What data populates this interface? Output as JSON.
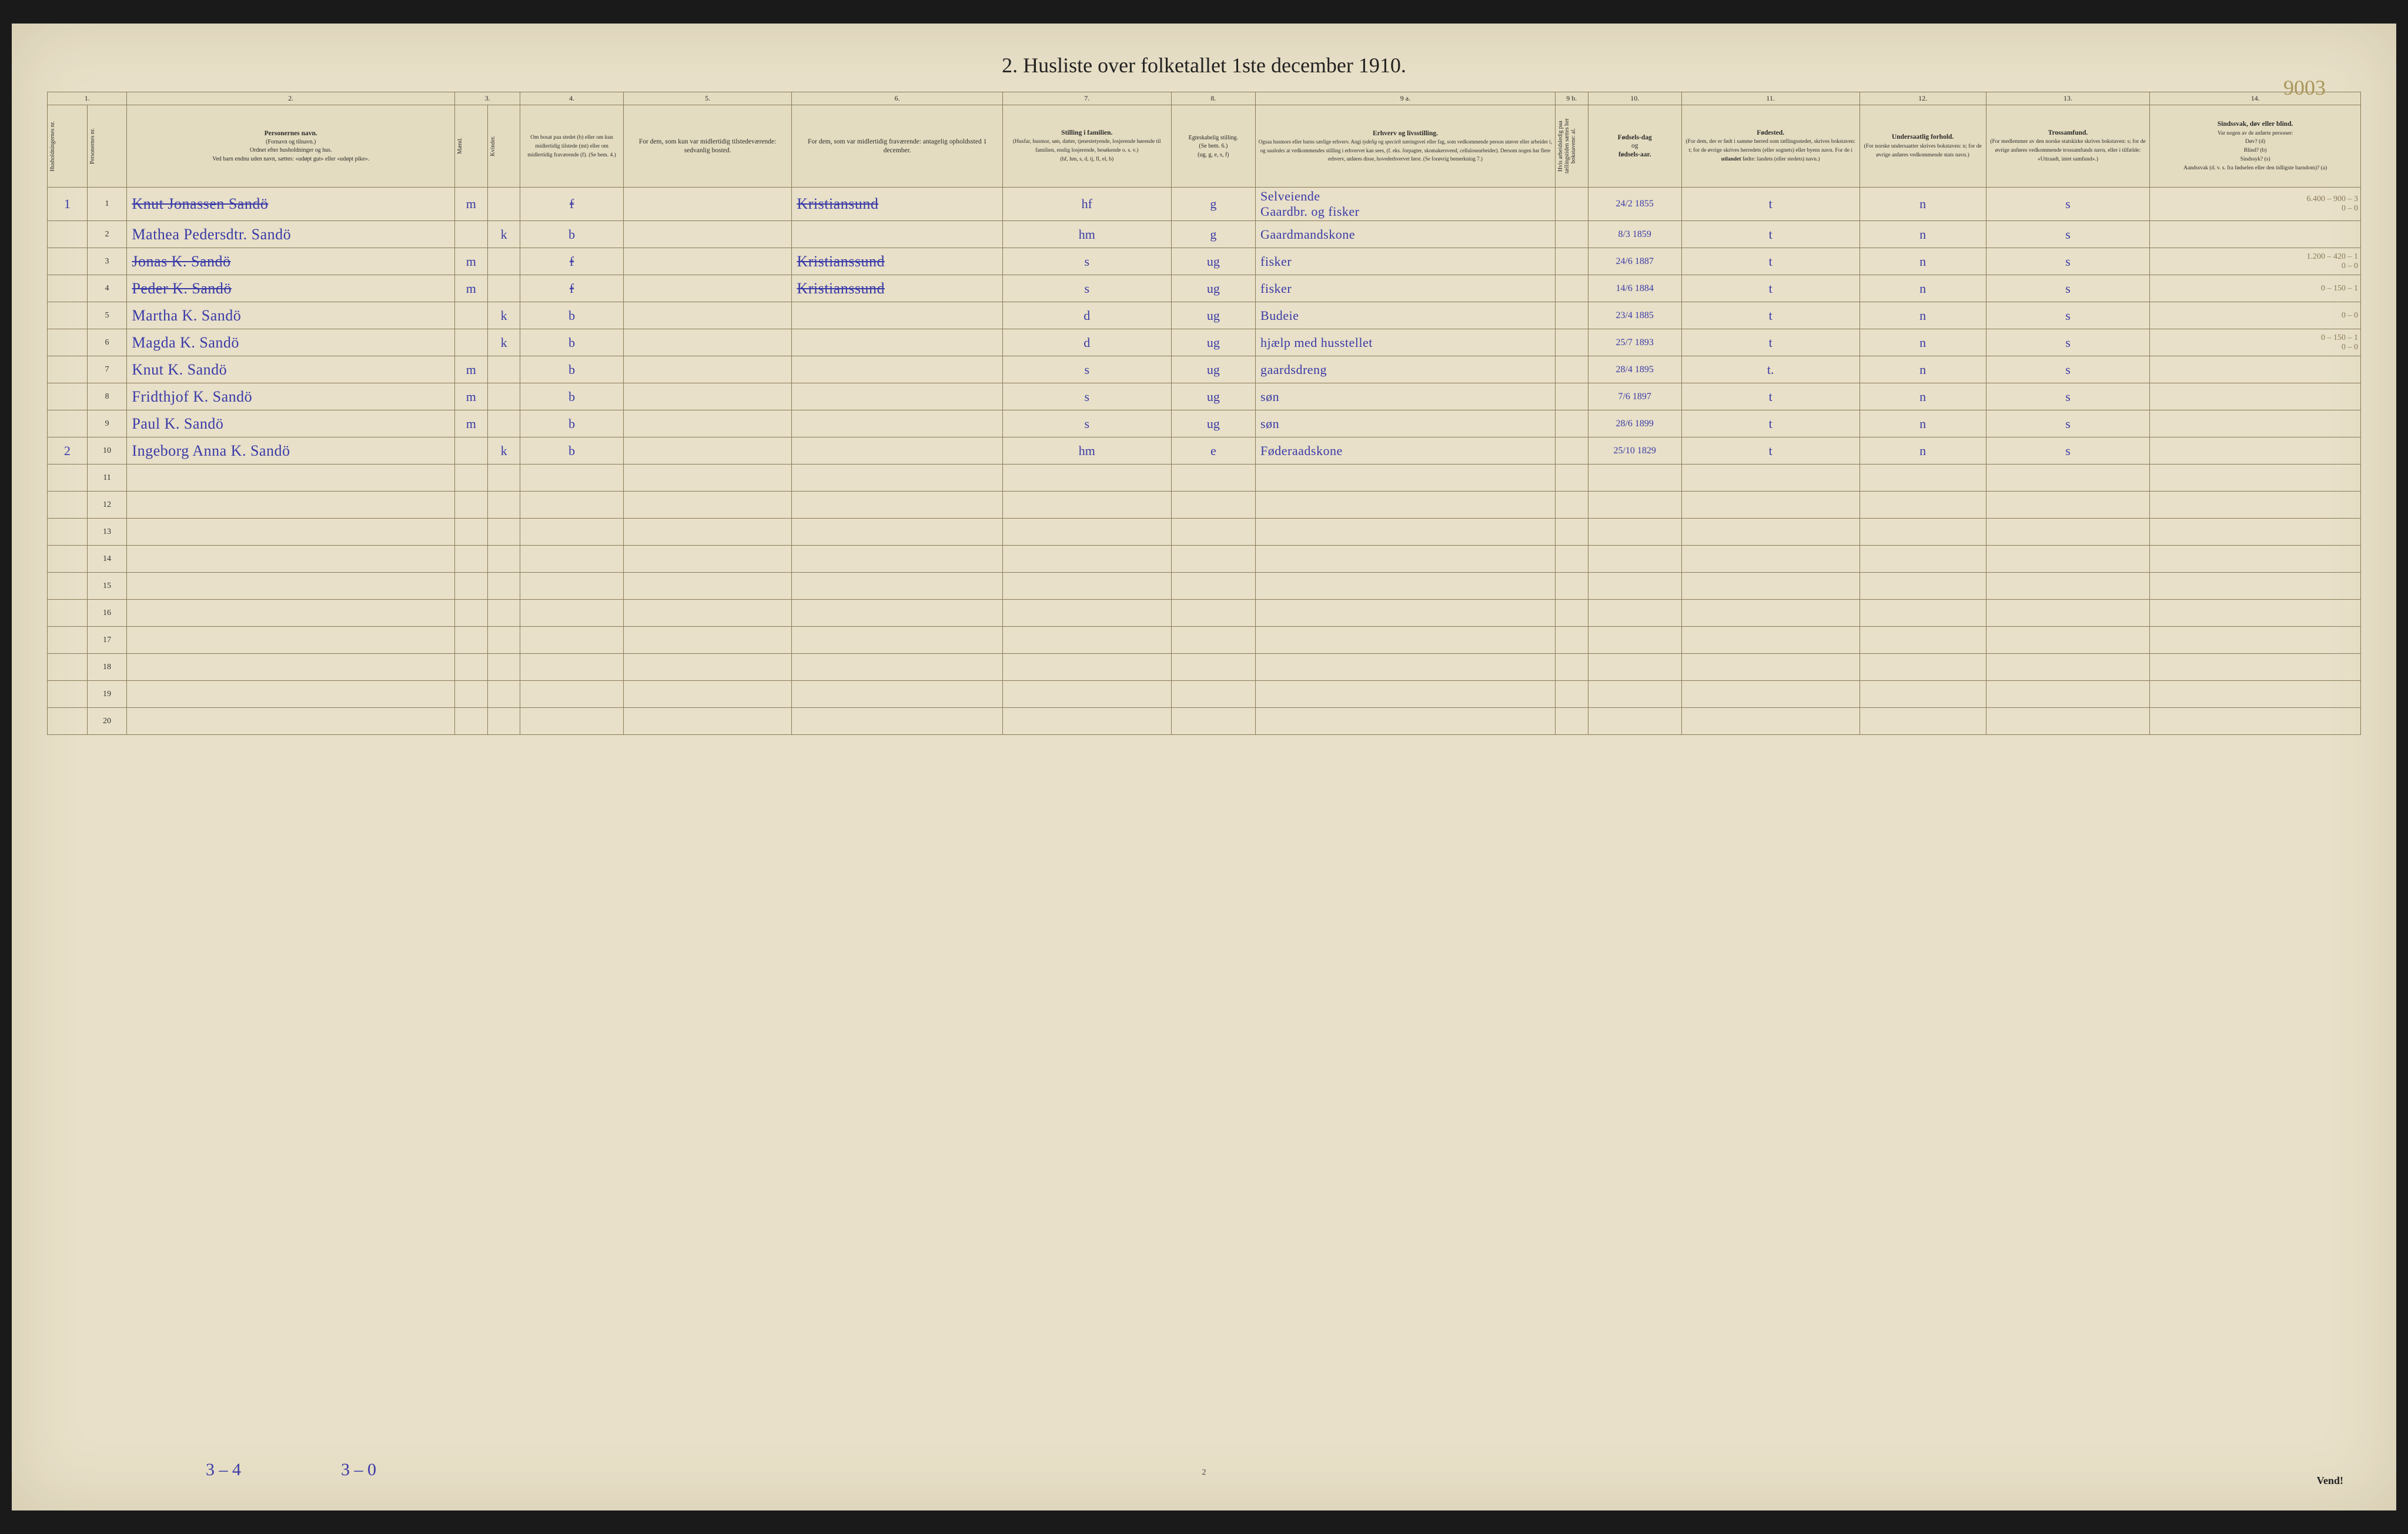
{
  "title": "2.  Husliste over folketallet 1ste december 1910.",
  "top_annotation": "9003",
  "page_number": "2",
  "vend": "Vend!",
  "footer_annot_1": "3 – 4",
  "footer_annot_2": "3 – 0",
  "col_numbers": [
    "1.",
    "2.",
    "3.",
    "4.",
    "5.",
    "6.",
    "7.",
    "8.",
    "9 a.",
    "9 b.",
    "10.",
    "11.",
    "12.",
    "13.",
    "14."
  ],
  "headers": {
    "hh": "Husholdningernes nr.",
    "pn": "Personernes nr.",
    "name": "Personernes navn.\n(Fornavn og tilnavn.)\nOrdnet efter husholdninger og hus.\nVed barn endnu uden navn, sættes: «udøpt gut» eller «udøpt pike».",
    "sex_title": "Kjøn.",
    "sex_m": "Mænd.",
    "sex_k": "Kvinder.",
    "bosat": "Om bosat paa stedet (b) eller om kun midlertidig tilstede (mt) eller om midlertidig fraværende (f). (Se bem. 4.)",
    "sedv": "For dem, som kun var midlertidig tilstedeværende:\nsedvanlig bosted.",
    "midl": "For dem, som var midlertidig fraværende:\nantagelig opholdssted 1 december.",
    "fam": "Stilling i familien.\n(Husfar, husmor, søn, datter, tjenestetyende, losjerende hørende til familien, enslig losjerende, besøkende o. s. v.)\n(hf, hm, s, d, tj, fl, el, b)",
    "egte": "Egteskabelig stilling.\n(Se bem. 6.)\n(ug, g, e, s, f)",
    "erhv": "Erhverv og livsstilling.\nOgsaa husmors eller barns særlige erhverv.\nAngi tydelig og specielt næringsvei eller fag, som vedkommende person utøver eller arbeider i, og saaledes at vedkommendes stilling i erhvervet kan sees, (f. eks. forpagter, skomakersvend, cellulosearbeider). Dersom nogen har flere erhverv, anføres disse, hovederhvervet først. (Se forøvrig bemerkning 7.)",
    "arb": "Hvis arbeidsledig paa tællingstiden sættes her bokstavene: al.",
    "fdag": "Fødselsdag og fødselsaar.",
    "fsted": "Fødested.\n(For dem, der er født i samme herred som tællingsstedet, skrives bokstaven: t; for de øvrige skrives herredets (eller sognets) eller byens navn. For de i utlandet fødte: landets (eller stedets) navn.)",
    "unders": "Undersaatlig forhold.\n(For norske undersaatter skrives bokstaven: n; for de øvrige anføres vedkommende stats navn.)",
    "tros": "Trossamfund.\n(For medlemmer av den norske statskirke skrives bokstaven: s; for de øvrige anføres vedkommende trossamfunds navn, eller i tilfælde: «Uttraadt, intet samfund».)",
    "sind": "Sindssvak, døv eller blind.\nVar nogen av de anførte personer:\nDøv? (d)\nBlind? (b)\nSindssyk? (s)\nAandssvak (d. v. s. fra fødselen eller den tidligste barndom)? (a)"
  },
  "rows": [
    {
      "hh": "1",
      "num": "1",
      "name": "Knut Jonassen Sandö",
      "m": "m",
      "k": "",
      "bosat": "f",
      "sedv": "",
      "midl": "Kristiansund",
      "fam": "hf",
      "egte": "g",
      "erhv": "Selveiende\nGaardbr. og fisker",
      "fdag": "24/2 1855",
      "fsted": "t",
      "unders": "n",
      "tros": "s",
      "sind": "6.400 – 900 – 3\n0 – 0",
      "struck": true
    },
    {
      "hh": "",
      "num": "2",
      "name": "Mathea Pedersdtr. Sandö",
      "m": "",
      "k": "k",
      "bosat": "b",
      "sedv": "",
      "midl": "",
      "fam": "hm",
      "egte": "g",
      "erhv": "Gaardmandskone",
      "fdag": "8/3 1859",
      "fsted": "t",
      "unders": "n",
      "tros": "s",
      "sind": ""
    },
    {
      "hh": "",
      "num": "3",
      "name": "Jonas K. Sandö",
      "m": "m",
      "k": "",
      "bosat": "f",
      "sedv": "",
      "midl": "Kristianssund",
      "fam": "s",
      "egte": "ug",
      "erhv": "fisker",
      "fdag": "24/6 1887",
      "fsted": "t",
      "unders": "n",
      "tros": "s",
      "sind": "1.200 – 420 – 1\n0 – 0",
      "struck": true
    },
    {
      "hh": "",
      "num": "4",
      "name": "Peder K. Sandö",
      "m": "m",
      "k": "",
      "bosat": "f",
      "sedv": "",
      "midl": "Kristianssund",
      "fam": "s",
      "egte": "ug",
      "erhv": "fisker",
      "fdag": "14/6 1884",
      "fsted": "t",
      "unders": "n",
      "tros": "s",
      "sind": "0 – 150 – 1",
      "struck": true
    },
    {
      "hh": "",
      "num": "5",
      "name": "Martha K. Sandö",
      "m": "",
      "k": "k",
      "bosat": "b",
      "sedv": "",
      "midl": "",
      "fam": "d",
      "egte": "ug",
      "erhv": "Budeie",
      "fdag": "23/4 1885",
      "fsted": "t",
      "unders": "n",
      "tros": "s",
      "sind": "0 – 0"
    },
    {
      "hh": "",
      "num": "6",
      "name": "Magda K. Sandö",
      "m": "",
      "k": "k",
      "bosat": "b",
      "sedv": "",
      "midl": "",
      "fam": "d",
      "egte": "ug",
      "erhv": "hjælp med husstellet",
      "fdag": "25/7 1893",
      "fsted": "t",
      "unders": "n",
      "tros": "s",
      "sind": "0 – 150 – 1\n0 – 0"
    },
    {
      "hh": "",
      "num": "7",
      "name": "Knut K. Sandö",
      "m": "m",
      "k": "",
      "bosat": "b",
      "sedv": "",
      "midl": "",
      "fam": "s",
      "egte": "ug",
      "erhv": "gaardsdreng",
      "fdag": "28/4 1895",
      "fsted": "t.",
      "unders": "n",
      "tros": "s",
      "sind": ""
    },
    {
      "hh": "",
      "num": "8",
      "name": "Fridthjof K. Sandö",
      "m": "m",
      "k": "",
      "bosat": "b",
      "sedv": "",
      "midl": "",
      "fam": "s",
      "egte": "ug",
      "erhv": "søn",
      "fdag": "7/6 1897",
      "fsted": "t",
      "unders": "n",
      "tros": "s",
      "sind": ""
    },
    {
      "hh": "",
      "num": "9",
      "name": "Paul K. Sandö",
      "m": "m",
      "k": "",
      "bosat": "b",
      "sedv": "",
      "midl": "",
      "fam": "s",
      "egte": "ug",
      "erhv": "søn",
      "fdag": "28/6 1899",
      "fsted": "t",
      "unders": "n",
      "tros": "s",
      "sind": ""
    },
    {
      "hh": "2",
      "num": "10",
      "name": "Ingeborg Anna K. Sandö",
      "m": "",
      "k": "k",
      "bosat": "b",
      "sedv": "",
      "midl": "",
      "fam": "hm",
      "egte": "e",
      "erhv": "Føderaadskone",
      "fdag": "25/10 1829",
      "fsted": "t",
      "unders": "n",
      "tros": "s",
      "sind": ""
    }
  ],
  "empty_rows": [
    "11",
    "12",
    "13",
    "14",
    "15",
    "16",
    "17",
    "18",
    "19",
    "20"
  ]
}
